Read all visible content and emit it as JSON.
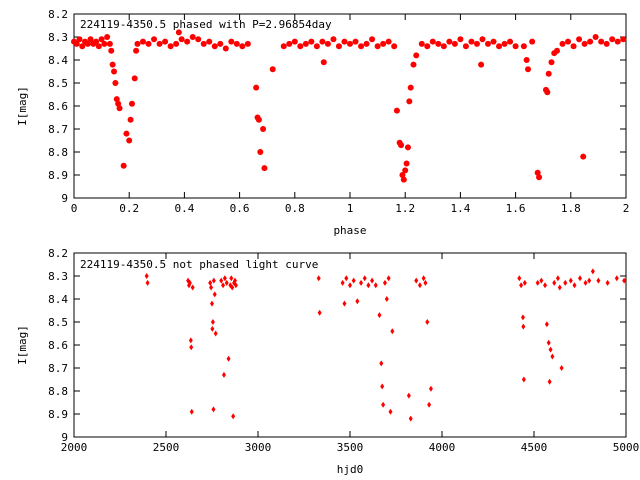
{
  "chart_data": [
    {
      "type": "scatter",
      "title": "224119-4350.5 phased with P=2.96854day",
      "xlabel": "phase",
      "ylabel": "I[mag]",
      "xlim": [
        0,
        2
      ],
      "ylim": [
        9,
        8.2
      ],
      "y_inverted": true,
      "xticks": [
        "0",
        "0.2",
        "0.4",
        "0.6",
        "0.8",
        "1",
        "1.2",
        "1.4",
        "1.6",
        "1.8",
        "2"
      ],
      "yticks": [
        "8.2",
        "8.3",
        "8.4",
        "8.5",
        "8.6",
        "8.7",
        "8.8",
        "8.9",
        "9"
      ],
      "grid": false,
      "marker": "filled-circle",
      "color": "#ff0000",
      "points": [
        [
          0.0,
          8.32
        ],
        [
          0.01,
          8.33
        ],
        [
          0.02,
          8.31
        ],
        [
          0.03,
          8.34
        ],
        [
          0.04,
          8.32
        ],
        [
          0.05,
          8.33
        ],
        [
          0.06,
          8.31
        ],
        [
          0.07,
          8.33
        ],
        [
          0.08,
          8.32
        ],
        [
          0.09,
          8.34
        ],
        [
          0.1,
          8.31
        ],
        [
          0.11,
          8.33
        ],
        [
          0.12,
          8.3
        ],
        [
          0.13,
          8.33
        ],
        [
          0.135,
          8.36
        ],
        [
          0.14,
          8.42
        ],
        [
          0.145,
          8.45
        ],
        [
          0.15,
          8.5
        ],
        [
          0.155,
          8.57
        ],
        [
          0.16,
          8.59
        ],
        [
          0.165,
          8.61
        ],
        [
          0.18,
          8.86
        ],
        [
          0.19,
          8.72
        ],
        [
          0.2,
          8.75
        ],
        [
          0.205,
          8.66
        ],
        [
          0.21,
          8.59
        ],
        [
          0.22,
          8.48
        ],
        [
          0.225,
          8.36
        ],
        [
          0.23,
          8.33
        ],
        [
          0.25,
          8.32
        ],
        [
          0.27,
          8.33
        ],
        [
          0.29,
          8.31
        ],
        [
          0.31,
          8.33
        ],
        [
          0.33,
          8.32
        ],
        [
          0.35,
          8.34
        ],
        [
          0.37,
          8.33
        ],
        [
          0.38,
          8.28
        ],
        [
          0.39,
          8.31
        ],
        [
          0.41,
          8.32
        ],
        [
          0.43,
          8.3
        ],
        [
          0.45,
          8.31
        ],
        [
          0.47,
          8.33
        ],
        [
          0.49,
          8.32
        ],
        [
          0.51,
          8.34
        ],
        [
          0.53,
          8.33
        ],
        [
          0.55,
          8.35
        ],
        [
          0.57,
          8.32
        ],
        [
          0.59,
          8.33
        ],
        [
          0.61,
          8.34
        ],
        [
          0.63,
          8.33
        ],
        [
          0.66,
          8.52
        ],
        [
          0.665,
          8.65
        ],
        [
          0.67,
          8.66
        ],
        [
          0.675,
          8.8
        ],
        [
          0.685,
          8.7
        ],
        [
          0.69,
          8.87
        ],
        [
          0.72,
          8.44
        ],
        [
          0.76,
          8.34
        ],
        [
          0.78,
          8.33
        ],
        [
          0.8,
          8.32
        ],
        [
          0.82,
          8.34
        ],
        [
          0.84,
          8.33
        ],
        [
          0.86,
          8.32
        ],
        [
          0.88,
          8.34
        ],
        [
          0.9,
          8.32
        ],
        [
          0.905,
          8.41
        ],
        [
          0.92,
          8.33
        ],
        [
          0.94,
          8.31
        ],
        [
          0.96,
          8.34
        ],
        [
          0.98,
          8.32
        ],
        [
          1.0,
          8.33
        ],
        [
          1.02,
          8.32
        ],
        [
          1.04,
          8.34
        ],
        [
          1.06,
          8.33
        ],
        [
          1.08,
          8.31
        ],
        [
          1.1,
          8.34
        ],
        [
          1.12,
          8.33
        ],
        [
          1.14,
          8.32
        ],
        [
          1.16,
          8.34
        ],
        [
          1.17,
          8.62
        ],
        [
          1.18,
          8.76
        ],
        [
          1.185,
          8.77
        ],
        [
          1.19,
          8.9
        ],
        [
          1.195,
          8.92
        ],
        [
          1.2,
          8.88
        ],
        [
          1.205,
          8.85
        ],
        [
          1.21,
          8.78
        ],
        [
          1.215,
          8.58
        ],
        [
          1.22,
          8.52
        ],
        [
          1.23,
          8.42
        ],
        [
          1.24,
          8.38
        ],
        [
          1.26,
          8.33
        ],
        [
          1.28,
          8.34
        ],
        [
          1.3,
          8.32
        ],
        [
          1.32,
          8.33
        ],
        [
          1.34,
          8.34
        ],
        [
          1.36,
          8.32
        ],
        [
          1.38,
          8.33
        ],
        [
          1.4,
          8.31
        ],
        [
          1.42,
          8.34
        ],
        [
          1.44,
          8.32
        ],
        [
          1.46,
          8.33
        ],
        [
          1.475,
          8.42
        ],
        [
          1.48,
          8.31
        ],
        [
          1.5,
          8.33
        ],
        [
          1.52,
          8.32
        ],
        [
          1.54,
          8.34
        ],
        [
          1.56,
          8.33
        ],
        [
          1.58,
          8.32
        ],
        [
          1.6,
          8.34
        ],
        [
          1.63,
          8.34
        ],
        [
          1.64,
          8.4
        ],
        [
          1.645,
          8.44
        ],
        [
          1.66,
          8.32
        ],
        [
          1.68,
          8.89
        ],
        [
          1.685,
          8.91
        ],
        [
          1.71,
          8.53
        ],
        [
          1.715,
          8.54
        ],
        [
          1.72,
          8.46
        ],
        [
          1.73,
          8.41
        ],
        [
          1.74,
          8.37
        ],
        [
          1.75,
          8.36
        ],
        [
          1.77,
          8.33
        ],
        [
          1.79,
          8.32
        ],
        [
          1.81,
          8.34
        ],
        [
          1.83,
          8.31
        ],
        [
          1.845,
          8.82
        ],
        [
          1.85,
          8.33
        ],
        [
          1.87,
          8.32
        ],
        [
          1.89,
          8.3
        ],
        [
          1.91,
          8.32
        ],
        [
          1.93,
          8.33
        ],
        [
          1.95,
          8.31
        ],
        [
          1.97,
          8.32
        ],
        [
          1.99,
          8.31
        ]
      ]
    },
    {
      "type": "scatter",
      "title": "224119-4350.5 not phased light curve",
      "xlabel": "hjd0",
      "ylabel": "I[mag]",
      "xlim": [
        2000,
        5000
      ],
      "ylim": [
        9,
        8.2
      ],
      "y_inverted": true,
      "xticks": [
        "2000",
        "2500",
        "3000",
        "3500",
        "4000",
        "4500",
        "5000"
      ],
      "yticks": [
        "8.2",
        "8.3",
        "8.4",
        "8.5",
        "8.6",
        "8.7",
        "8.8",
        "8.9",
        "9"
      ],
      "grid": false,
      "marker": "small-diamond",
      "color": "#ff0000",
      "points": [
        [
          2395,
          8.3
        ],
        [
          2400,
          8.33
        ],
        [
          2620,
          8.32
        ],
        [
          2625,
          8.34
        ],
        [
          2630,
          8.33
        ],
        [
          2635,
          8.58
        ],
        [
          2637,
          8.61
        ],
        [
          2640,
          8.89
        ],
        [
          2645,
          8.35
        ],
        [
          2740,
          8.33
        ],
        [
          2745,
          8.35
        ],
        [
          2750,
          8.42
        ],
        [
          2752,
          8.53
        ],
        [
          2755,
          8.5
        ],
        [
          2758,
          8.88
        ],
        [
          2760,
          8.32
        ],
        [
          2765,
          8.38
        ],
        [
          2770,
          8.55
        ],
        [
          2800,
          8.32
        ],
        [
          2810,
          8.34
        ],
        [
          2815,
          8.73
        ],
        [
          2820,
          8.31
        ],
        [
          2830,
          8.33
        ],
        [
          2840,
          8.66
        ],
        [
          2850,
          8.34
        ],
        [
          2855,
          8.31
        ],
        [
          2860,
          8.35
        ],
        [
          2865,
          8.91
        ],
        [
          2870,
          8.33
        ],
        [
          2875,
          8.32
        ],
        [
          2880,
          8.34
        ],
        [
          3330,
          8.31
        ],
        [
          3335,
          8.46
        ],
        [
          3460,
          8.33
        ],
        [
          3470,
          8.42
        ],
        [
          3480,
          8.31
        ],
        [
          3500,
          8.34
        ],
        [
          3520,
          8.32
        ],
        [
          3540,
          8.41
        ],
        [
          3560,
          8.33
        ],
        [
          3580,
          8.31
        ],
        [
          3600,
          8.34
        ],
        [
          3620,
          8.32
        ],
        [
          3640,
          8.34
        ],
        [
          3660,
          8.47
        ],
        [
          3670,
          8.68
        ],
        [
          3675,
          8.78
        ],
        [
          3680,
          8.86
        ],
        [
          3690,
          8.33
        ],
        [
          3700,
          8.4
        ],
        [
          3710,
          8.31
        ],
        [
          3720,
          8.89
        ],
        [
          3730,
          8.54
        ],
        [
          3820,
          8.82
        ],
        [
          3830,
          8.92
        ],
        [
          3860,
          8.32
        ],
        [
          3880,
          8.34
        ],
        [
          3900,
          8.31
        ],
        [
          3910,
          8.33
        ],
        [
          3920,
          8.5
        ],
        [
          3930,
          8.86
        ],
        [
          3940,
          8.79
        ],
        [
          4420,
          8.31
        ],
        [
          4430,
          8.34
        ],
        [
          4440,
          8.48
        ],
        [
          4442,
          8.52
        ],
        [
          4445,
          8.75
        ],
        [
          4450,
          8.33
        ],
        [
          4520,
          8.33
        ],
        [
          4540,
          8.32
        ],
        [
          4560,
          8.34
        ],
        [
          4570,
          8.51
        ],
        [
          4580,
          8.59
        ],
        [
          4585,
          8.76
        ],
        [
          4590,
          8.62
        ],
        [
          4600,
          8.65
        ],
        [
          4610,
          8.33
        ],
        [
          4630,
          8.31
        ],
        [
          4640,
          8.35
        ],
        [
          4650,
          8.7
        ],
        [
          4670,
          8.33
        ],
        [
          4700,
          8.32
        ],
        [
          4720,
          8.34
        ],
        [
          4750,
          8.31
        ],
        [
          4780,
          8.33
        ],
        [
          4800,
          8.32
        ],
        [
          4820,
          8.28
        ],
        [
          4850,
          8.32
        ],
        [
          4900,
          8.33
        ],
        [
          4950,
          8.31
        ],
        [
          4990,
          8.32
        ]
      ]
    }
  ]
}
